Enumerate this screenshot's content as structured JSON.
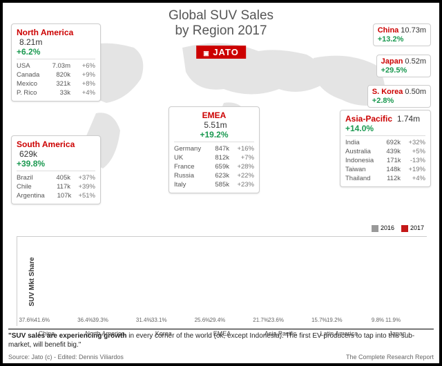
{
  "title_l1": "Global SUV Sales",
  "title_l2": "by Region 2017",
  "brand": "JATO",
  "map_fill": "#8a8a8a",
  "colors": {
    "accent": "#cc0000",
    "growth": "#1a9950",
    "bar2016": "#999999",
    "bar2017": "#c41818"
  },
  "north_america": {
    "name": "North America",
    "value": "8.21m",
    "growth": "+6.2%",
    "rows": [
      {
        "n": "USA",
        "v": "7.03m",
        "p": "+6%"
      },
      {
        "n": "Canada",
        "v": "820k",
        "p": "+9%"
      },
      {
        "n": "Mexico",
        "v": "321k",
        "p": "+8%"
      },
      {
        "n": "P. Rico",
        "v": "33k",
        "p": "+4%"
      }
    ]
  },
  "south_america": {
    "name": "South America",
    "value": "629k",
    "growth": "+39.8%",
    "rows": [
      {
        "n": "Brazil",
        "v": "405k",
        "p": "+37%"
      },
      {
        "n": "Chile",
        "v": "117k",
        "p": "+39%"
      },
      {
        "n": "Argentina",
        "v": "107k",
        "p": "+51%"
      }
    ]
  },
  "emea": {
    "name": "EMEA",
    "value": "5.51m",
    "growth": "+19.2%",
    "rows": [
      {
        "n": "Germany",
        "v": "847k",
        "p": "+16%"
      },
      {
        "n": "UK",
        "v": "812k",
        "p": "+7%"
      },
      {
        "n": "France",
        "v": "659k",
        "p": "+28%"
      },
      {
        "n": "Russia",
        "v": "623k",
        "p": "+22%"
      },
      {
        "n": "Italy",
        "v": "585k",
        "p": "+23%"
      }
    ]
  },
  "asia_pac": {
    "name": "Asia-Pacific",
    "value": "1.74m",
    "growth": "+14.0%",
    "rows": [
      {
        "n": "India",
        "v": "692k",
        "p": "+32%"
      },
      {
        "n": "Australia",
        "v": "439k",
        "p": "+5%"
      },
      {
        "n": "Indonesia",
        "v": "171k",
        "p": "-13%"
      },
      {
        "n": "Taiwan",
        "v": "148k",
        "p": "+19%"
      },
      {
        "n": "Thailand",
        "v": "112k",
        "p": "+4%"
      }
    ]
  },
  "china": {
    "name": "China",
    "value": "10.73m",
    "growth": "+13.2%"
  },
  "japan": {
    "name": "Japan",
    "value": "0.52m",
    "growth": "+29.5%"
  },
  "skorea": {
    "name": "S. Korea",
    "value": "0.50m",
    "growth": "+2.8%"
  },
  "chart": {
    "ylabel": "SUV Mkt Share",
    "legend": [
      "2016",
      "2017"
    ],
    "ymax": 45,
    "groups": [
      {
        "cat": "China",
        "a": 37.6,
        "b": 41.6,
        "al": "37.6%",
        "bl": "41.6%"
      },
      {
        "cat": "North\nAmerica",
        "a": 36.4,
        "b": 39.3,
        "al": "36.4%",
        "bl": "39.3%"
      },
      {
        "cat": "Korea",
        "a": 31.4,
        "b": 33.1,
        "al": "31.4%",
        "bl": "33.1%"
      },
      {
        "cat": "EMEA",
        "a": 25.6,
        "b": 29.4,
        "al": "25.6%",
        "bl": "29.4%"
      },
      {
        "cat": "Asia Pacific",
        "a": 21.7,
        "b": 23.6,
        "al": "21.7%",
        "bl": "23.6%"
      },
      {
        "cat": "Latin America",
        "a": 15.7,
        "b": 19.2,
        "al": "15.7%",
        "bl": "19.2%"
      },
      {
        "cat": "Japan",
        "a": 9.8,
        "b": 11.9,
        "al": "9.8%",
        "bl": "11.9%"
      }
    ]
  },
  "quote_bold": "\"SUV sales are experiencing growth",
  "quote_rest": " in every corner of the world (ok, except Indonesia). The first EV producers to tap into this sub-market, will benefit big.\"",
  "source": "Source: Jato (c) - Edited: Dennis Viliardos",
  "report": "The Complete Research Report"
}
